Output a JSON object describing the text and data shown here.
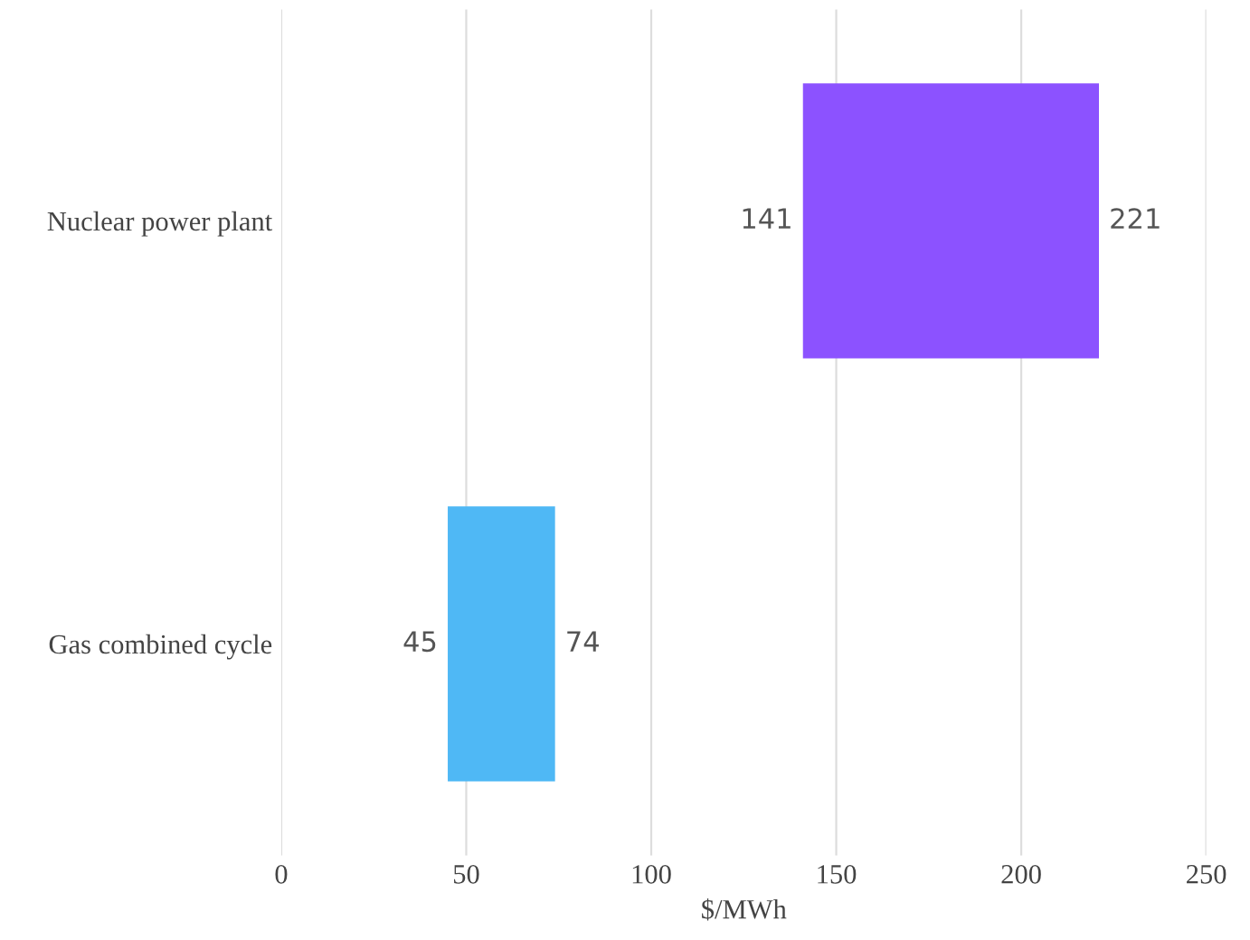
{
  "chart_data": {
    "type": "bar",
    "orientation": "horizontal",
    "categories": [
      "Nuclear power plant",
      "Gas combined cycle"
    ],
    "series": [
      {
        "color": "#8c52ff",
        "values": [
          80,
          null
        ],
        "base": [
          141,
          null
        ]
      },
      {
        "color": "#4fb8f5",
        "values": [
          null,
          29
        ],
        "base": [
          null,
          45
        ]
      }
    ],
    "xlabel": "$/MWh",
    "xlim": [
      0,
      250
    ],
    "xticks": [
      0,
      50,
      100,
      150,
      200,
      250
    ],
    "grid": "x",
    "legend": false,
    "annotations": [
      {
        "text": "141",
        "x": 141,
        "y": "Nuclear power plant"
      },
      {
        "text": "221",
        "x": 221,
        "y": "Nuclear power plant"
      },
      {
        "text": "45",
        "x": 45,
        "y": "Gas combined cycle"
      },
      {
        "text": "74",
        "x": 74,
        "y": "Gas combined cycle"
      }
    ]
  }
}
